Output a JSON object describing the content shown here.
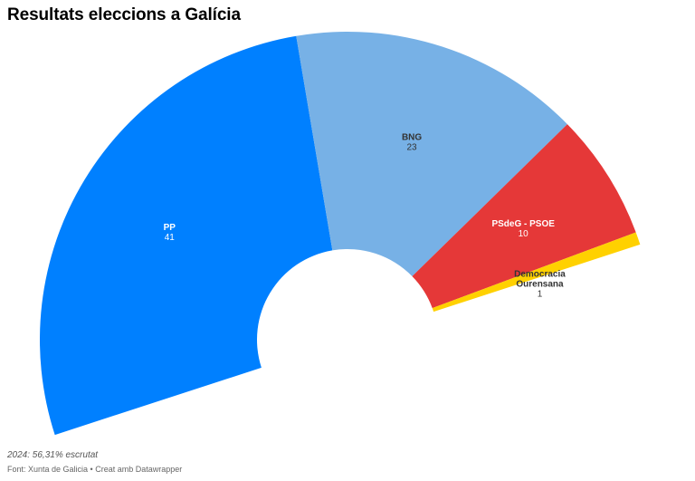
{
  "title": "Resultats eleccions a Galícia",
  "note": "2024: 56,31% escrutat",
  "source": "Font: Xunta de Galicia • Creat amb Datawrapper",
  "chart_data": {
    "type": "pie",
    "variant": "semicircle-parliament",
    "total_seats": 75,
    "series": [
      {
        "name": "PP",
        "value": 41,
        "color": "#0080ff",
        "text_color": "#ffffff"
      },
      {
        "name": "BNG",
        "value": 23,
        "color": "#77b1e6",
        "text_color": "#333333"
      },
      {
        "name": "PSdeG - PSOE",
        "value": 10,
        "color": "#e53838",
        "text_color": "#ffffff"
      },
      {
        "name": "Democracia Ourensana",
        "value": 1,
        "color": "#ffd100",
        "text_color": "#333333"
      }
    ]
  }
}
